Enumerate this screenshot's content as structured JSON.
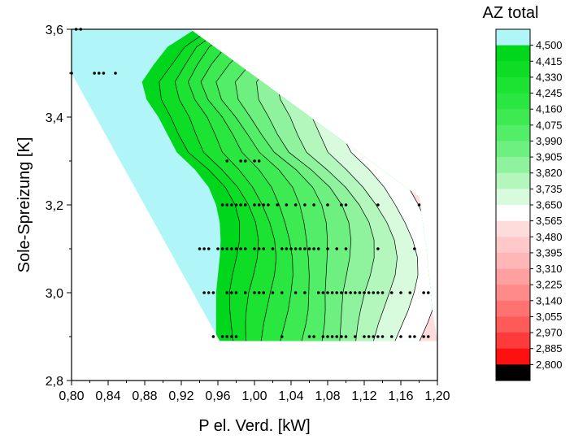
{
  "chart_data": {
    "type": "contour",
    "title": "",
    "xlabel": "P el. Verd. [kW]",
    "ylabel": "Sole-Spreizung [K]",
    "xlim": [
      0.8,
      1.2
    ],
    "ylim": [
      2.8,
      3.6
    ],
    "x_ticks": [
      "0,80",
      "0,84",
      "0,88",
      "0,92",
      "0,96",
      "1,00",
      "1,04",
      "1,08",
      "1,12",
      "1,16",
      "1,20"
    ],
    "y_ticks": [
      "2,8",
      "3,0",
      "3,2",
      "3,4",
      "3,6"
    ],
    "grid": false,
    "colorbar": {
      "title": "AZ total",
      "placement": "right",
      "levels": [
        "4,500",
        "4,415",
        "4,330",
        "4,245",
        "4,160",
        "4,075",
        "3,990",
        "3,905",
        "3,820",
        "3,735",
        "3,650",
        "3,565",
        "3,480",
        "3,395",
        "3,310",
        "3,225",
        "3,140",
        "3,055",
        "2,970",
        "2,885",
        "2,800"
      ],
      "colors": [
        "#b0f6f8",
        "#00d71c",
        "#0ddd24",
        "#1ce232",
        "#2ae640",
        "#3dea52",
        "#53ee68",
        "#6df07f",
        "#8ef39c",
        "#b3f7bd",
        "#d9fbdd",
        "#ffffff",
        "#ffdcdc",
        "#ffc9c9",
        "#ffb6b6",
        "#ffa0a0",
        "#ff8a8a",
        "#ff7272",
        "#ff5a5a",
        "#ff3a3a",
        "#ff1010",
        "#000000"
      ]
    },
    "measurement_points": [
      [
        0.805,
        3.6
      ],
      [
        0.81,
        3.6
      ],
      [
        0.8,
        3.5
      ],
      [
        0.825,
        3.5
      ],
      [
        0.83,
        3.5
      ],
      [
        0.835,
        3.5
      ],
      [
        0.848,
        3.5
      ],
      [
        0.97,
        3.3
      ],
      [
        0.985,
        3.3
      ],
      [
        0.99,
        3.3
      ],
      [
        1.0,
        3.3
      ],
      [
        1.005,
        3.3
      ],
      [
        0.965,
        3.2
      ],
      [
        0.97,
        3.2
      ],
      [
        0.975,
        3.2
      ],
      [
        0.98,
        3.2
      ],
      [
        0.985,
        3.2
      ],
      [
        0.99,
        3.2
      ],
      [
        1.0,
        3.2
      ],
      [
        1.005,
        3.2
      ],
      [
        1.01,
        3.2
      ],
      [
        1.015,
        3.2
      ],
      [
        1.025,
        3.2
      ],
      [
        1.035,
        3.2
      ],
      [
        1.045,
        3.2
      ],
      [
        1.055,
        3.2
      ],
      [
        1.065,
        3.2
      ],
      [
        1.08,
        3.2
      ],
      [
        1.095,
        3.2
      ],
      [
        1.1,
        3.2
      ],
      [
        1.135,
        3.2
      ],
      [
        1.18,
        3.2
      ],
      [
        0.94,
        3.1
      ],
      [
        0.945,
        3.1
      ],
      [
        0.95,
        3.1
      ],
      [
        0.96,
        3.1
      ],
      [
        0.965,
        3.1
      ],
      [
        0.97,
        3.1
      ],
      [
        0.975,
        3.1
      ],
      [
        0.98,
        3.1
      ],
      [
        0.985,
        3.1
      ],
      [
        0.99,
        3.1
      ],
      [
        1.0,
        3.1
      ],
      [
        1.005,
        3.1
      ],
      [
        1.01,
        3.1
      ],
      [
        1.02,
        3.1
      ],
      [
        1.03,
        3.1
      ],
      [
        1.035,
        3.1
      ],
      [
        1.04,
        3.1
      ],
      [
        1.045,
        3.1
      ],
      [
        1.05,
        3.1
      ],
      [
        1.055,
        3.1
      ],
      [
        1.06,
        3.1
      ],
      [
        1.065,
        3.1
      ],
      [
        1.07,
        3.1
      ],
      [
        1.08,
        3.1
      ],
      [
        1.09,
        3.1
      ],
      [
        1.1,
        3.1
      ],
      [
        1.135,
        3.1
      ],
      [
        1.175,
        3.1
      ],
      [
        0.945,
        3.0
      ],
      [
        0.95,
        3.0
      ],
      [
        0.955,
        3.0
      ],
      [
        0.97,
        3.0
      ],
      [
        0.975,
        3.0
      ],
      [
        0.98,
        3.0
      ],
      [
        0.99,
        3.0
      ],
      [
        1.0,
        3.0
      ],
      [
        1.005,
        3.0
      ],
      [
        1.01,
        3.0
      ],
      [
        1.02,
        3.0
      ],
      [
        1.03,
        3.0
      ],
      [
        1.045,
        3.0
      ],
      [
        1.055,
        3.0
      ],
      [
        1.07,
        3.0
      ],
      [
        1.075,
        3.0
      ],
      [
        1.08,
        3.0
      ],
      [
        1.085,
        3.0
      ],
      [
        1.09,
        3.0
      ],
      [
        1.095,
        3.0
      ],
      [
        1.1,
        3.0
      ],
      [
        1.105,
        3.0
      ],
      [
        1.11,
        3.0
      ],
      [
        1.115,
        3.0
      ],
      [
        1.12,
        3.0
      ],
      [
        1.125,
        3.0
      ],
      [
        1.13,
        3.0
      ],
      [
        1.135,
        3.0
      ],
      [
        1.14,
        3.0
      ],
      [
        1.15,
        3.0
      ],
      [
        1.16,
        3.0
      ],
      [
        1.17,
        3.0
      ],
      [
        1.185,
        3.0
      ],
      [
        1.19,
        3.0
      ],
      [
        0.955,
        2.9
      ],
      [
        0.965,
        2.9
      ],
      [
        0.97,
        2.9
      ],
      [
        0.975,
        2.9
      ],
      [
        0.98,
        2.9
      ],
      [
        1.03,
        2.9
      ],
      [
        1.06,
        2.9
      ],
      [
        1.065,
        2.9
      ],
      [
        1.075,
        2.9
      ],
      [
        1.08,
        2.9
      ],
      [
        1.085,
        2.9
      ],
      [
        1.09,
        2.9
      ],
      [
        1.095,
        2.9
      ],
      [
        1.1,
        2.9
      ],
      [
        1.11,
        2.9
      ],
      [
        1.12,
        2.9
      ],
      [
        1.125,
        2.9
      ],
      [
        1.13,
        2.9
      ],
      [
        1.135,
        2.9
      ],
      [
        1.14,
        2.9
      ],
      [
        1.15,
        2.9
      ],
      [
        1.16,
        2.9
      ],
      [
        1.17,
        2.9
      ],
      [
        1.175,
        2.9
      ],
      [
        1.185,
        2.9
      ],
      [
        1.19,
        2.9
      ]
    ]
  }
}
